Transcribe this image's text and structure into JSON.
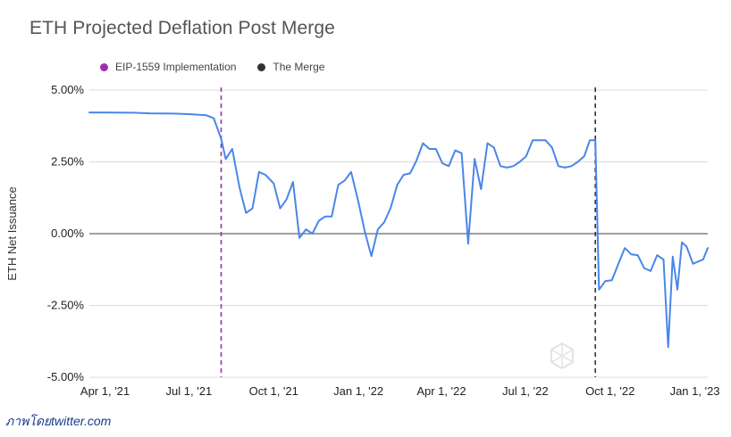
{
  "credit": "ภาพโดยtwitter.com",
  "chart_data": {
    "type": "line",
    "title": "ETH Projected Deflation Post Merge",
    "ylabel": "ETH Net Issuance",
    "xlabel": "",
    "ylim": [
      -5,
      5
    ],
    "xlim": [
      "2021-03-15",
      "2023-01-15"
    ],
    "y_ticks": [
      5,
      2.5,
      0,
      -2.5,
      -5
    ],
    "y_tick_labels": [
      "5.00%",
      "2.50%",
      "0.00%",
      "-2.50%",
      "-5.00%"
    ],
    "x_ticks": [
      "2021-04-01",
      "2021-07-01",
      "2021-10-01",
      "2022-01-01",
      "2022-04-01",
      "2022-07-01",
      "2022-10-01",
      "2023-01-01"
    ],
    "x_tick_labels": [
      "Apr 1, '21",
      "Jul 1, '21",
      "Oct 1, '21",
      "Jan 1, '22",
      "Apr 1, '22",
      "Jul 1, '22",
      "Oct 1, '22",
      "Jan 1, '23"
    ],
    "grid": "horizontal",
    "legend_position": "top-left",
    "legend": [
      {
        "name": "EIP-1559 Implementation",
        "color": "#9b30b5"
      },
      {
        "name": "The Merge",
        "color": "#333333"
      }
    ],
    "events": [
      {
        "name": "EIP-1559 Implementation",
        "date": "2021-08-05",
        "color": "#9b30b5",
        "style": "dashed"
      },
      {
        "name": "The Merge",
        "date": "2022-09-15",
        "color": "#333333",
        "style": "dashed"
      }
    ],
    "series": [
      {
        "color": "#4a86e8",
        "points": [
          [
            "2021-03-15",
            4.22
          ],
          [
            "2021-04-01",
            4.22
          ],
          [
            "2021-05-01",
            4.21
          ],
          [
            "2021-05-20",
            4.19
          ],
          [
            "2021-06-15",
            4.18
          ],
          [
            "2021-07-01",
            4.16
          ],
          [
            "2021-07-20",
            4.12
          ],
          [
            "2021-07-28",
            4.02
          ],
          [
            "2021-08-05",
            3.3
          ],
          [
            "2021-08-10",
            2.6
          ],
          [
            "2021-08-17",
            2.95
          ],
          [
            "2021-08-25",
            1.6
          ],
          [
            "2021-09-01",
            0.72
          ],
          [
            "2021-09-08",
            0.88
          ],
          [
            "2021-09-15",
            2.15
          ],
          [
            "2021-09-22",
            2.05
          ],
          [
            "2021-10-01",
            1.75
          ],
          [
            "2021-10-08",
            0.88
          ],
          [
            "2021-10-15",
            1.2
          ],
          [
            "2021-10-22",
            1.8
          ],
          [
            "2021-10-29",
            -0.15
          ],
          [
            "2021-11-05",
            0.15
          ],
          [
            "2021-11-12",
            0.0
          ],
          [
            "2021-11-19",
            0.45
          ],
          [
            "2021-11-26",
            0.6
          ],
          [
            "2021-12-03",
            0.6
          ],
          [
            "2021-12-10",
            1.7
          ],
          [
            "2021-12-17",
            1.85
          ],
          [
            "2021-12-24",
            2.15
          ],
          [
            "2022-01-01",
            1.1
          ],
          [
            "2022-01-08",
            0.05
          ],
          [
            "2022-01-15",
            -0.78
          ],
          [
            "2022-01-22",
            0.15
          ],
          [
            "2022-01-29",
            0.4
          ],
          [
            "2022-02-05",
            0.9
          ],
          [
            "2022-02-12",
            1.7
          ],
          [
            "2022-02-19",
            2.05
          ],
          [
            "2022-02-26",
            2.1
          ],
          [
            "2022-03-05",
            2.55
          ],
          [
            "2022-03-12",
            3.15
          ],
          [
            "2022-03-19",
            2.95
          ],
          [
            "2022-03-26",
            2.95
          ],
          [
            "2022-04-02",
            2.45
          ],
          [
            "2022-04-09",
            2.35
          ],
          [
            "2022-04-16",
            2.9
          ],
          [
            "2022-04-23",
            2.8
          ],
          [
            "2022-04-30",
            -0.35
          ],
          [
            "2022-05-07",
            2.6
          ],
          [
            "2022-05-14",
            1.55
          ],
          [
            "2022-05-21",
            3.15
          ],
          [
            "2022-05-28",
            3.0
          ],
          [
            "2022-06-04",
            2.35
          ],
          [
            "2022-06-11",
            2.3
          ],
          [
            "2022-06-18",
            2.35
          ],
          [
            "2022-06-25",
            2.5
          ],
          [
            "2022-07-02",
            2.7
          ],
          [
            "2022-07-09",
            3.25
          ],
          [
            "2022-07-16",
            3.25
          ],
          [
            "2022-07-23",
            3.25
          ],
          [
            "2022-07-30",
            3.0
          ],
          [
            "2022-08-06",
            2.35
          ],
          [
            "2022-08-13",
            2.3
          ],
          [
            "2022-08-20",
            2.35
          ],
          [
            "2022-08-27",
            2.5
          ],
          [
            "2022-09-03",
            2.7
          ],
          [
            "2022-09-09",
            3.25
          ],
          [
            "2022-09-15",
            3.25
          ],
          [
            "2022-09-19",
            -1.95
          ],
          [
            "2022-09-26",
            -1.65
          ],
          [
            "2022-10-03",
            -1.62
          ],
          [
            "2022-10-10",
            -1.05
          ],
          [
            "2022-10-17",
            -0.5
          ],
          [
            "2022-10-24",
            -0.72
          ],
          [
            "2022-10-31",
            -0.75
          ],
          [
            "2022-11-07",
            -1.2
          ],
          [
            "2022-11-14",
            -1.3
          ],
          [
            "2022-11-21",
            -0.75
          ],
          [
            "2022-11-28",
            -0.9
          ],
          [
            "2022-12-03",
            -3.95
          ],
          [
            "2022-12-08",
            -0.8
          ],
          [
            "2022-12-13",
            -1.95
          ],
          [
            "2022-12-18",
            -0.3
          ],
          [
            "2022-12-23",
            -0.45
          ],
          [
            "2022-12-30",
            -1.05
          ],
          [
            "2023-01-06",
            -0.95
          ],
          [
            "2023-01-10",
            -0.9
          ],
          [
            "2023-01-15",
            -0.5
          ]
        ]
      }
    ]
  }
}
